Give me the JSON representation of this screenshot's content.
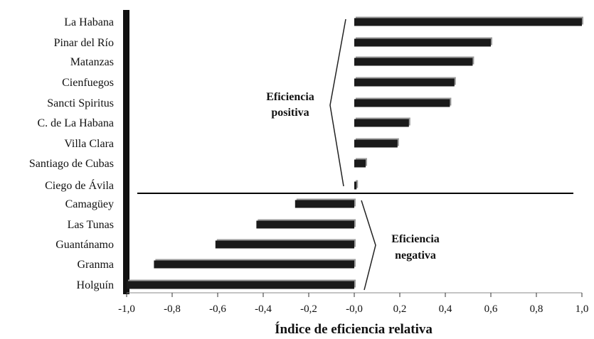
{
  "chart_data": {
    "type": "bar",
    "orientation": "horizontal",
    "categories": [
      "La Habana",
      "Pinar del Río",
      "Matanzas",
      "Cienfuegos",
      "Sancti Spiritus",
      "C. de La Habana",
      "Villa Clara",
      "Santiago de Cubas",
      "Ciego de Ávila",
      "Camagüey",
      "Las Tunas",
      "Guantánamo",
      "Granma",
      "Holguín"
    ],
    "values": [
      1.0,
      0.6,
      0.52,
      0.44,
      0.42,
      0.24,
      0.19,
      0.05,
      0.01,
      -0.26,
      -0.43,
      -0.61,
      -0.88,
      -1.0
    ],
    "xlabel": "Índice de eficiencia relativa",
    "ylabel": "",
    "xlim": [
      -1.0,
      1.0
    ],
    "xticks": [
      "-1,0",
      "-0,8",
      "-0,6",
      "-0,4",
      "-0,2",
      "-0,0",
      "0,2",
      "0,4",
      "0,6",
      "0,8",
      "1,0"
    ],
    "annotations": [
      {
        "lines": [
          "Eficiencia",
          "positiva"
        ]
      },
      {
        "lines": [
          "Eficiencia",
          "negativa"
        ]
      }
    ],
    "grid": false,
    "legend": "none",
    "colors": {
      "bar": "#1a1a1a",
      "shadow": "#9a9a9a",
      "axis": "#000000"
    }
  }
}
